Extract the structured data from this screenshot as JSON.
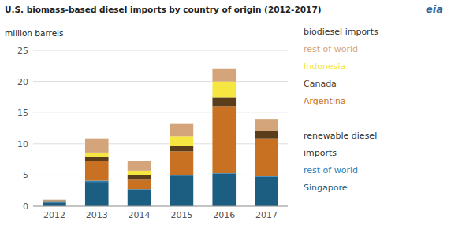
{
  "chart_data": {
    "type": "bar",
    "stacked": true,
    "title": "U.S. biomass-based diesel imports by country of origin (2012-2017)",
    "ylabel": "million barrels",
    "annotations": [
      "biodiesel imports",
      "renewable diesel",
      "imports",
      "eia"
    ],
    "categories": [
      "2012",
      "2013",
      "2014",
      "2015",
      "2016",
      "2017"
    ],
    "series": [
      {
        "name": "Singapore",
        "color": "#1b5e82",
        "values": [
          0.6,
          3.9,
          2.6,
          4.9,
          5.2,
          4.7
        ]
      },
      {
        "name": "rest of world",
        "color": "#2980b9",
        "values": [
          0.1,
          0.2,
          0.15,
          0.1,
          0.1,
          0.1
        ]
      },
      {
        "name": "Argentina",
        "color": "#c87122",
        "values": [
          0.15,
          3.2,
          1.5,
          3.8,
          10.7,
          6.1
        ]
      },
      {
        "name": "Canada",
        "color": "#5a3e1b",
        "values": [
          0.1,
          0.6,
          0.8,
          0.9,
          1.5,
          1.1
        ]
      },
      {
        "name": "Indonesia",
        "color": "#f5e642",
        "values": [
          0.0,
          0.7,
          0.65,
          1.5,
          2.5,
          0.0
        ]
      },
      {
        "name": "rest of world",
        "color": "#d4a57a",
        "values": [
          0.1,
          2.3,
          1.5,
          2.1,
          2.0,
          2.0
        ]
      }
    ],
    "ylim": [
      0,
      25
    ],
    "yticks": [
      0,
      5,
      10,
      15,
      20,
      25
    ],
    "grid": true,
    "legend": "right"
  }
}
